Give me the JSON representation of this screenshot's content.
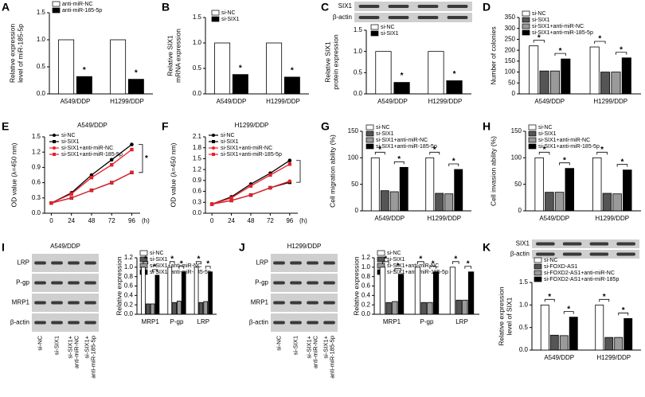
{
  "chart_data": [
    {
      "panel": "A",
      "type": "bar",
      "y_label": [
        "Relative expression",
        "level of miR-185-5p"
      ],
      "categories": [
        "A549/DDP",
        "H1299/DDP"
      ],
      "series": [
        {
          "name": "anti-miR-NC",
          "color": "#ffffff",
          "values": [
            1.0,
            1.0
          ]
        },
        {
          "name": "anti-miR-185-5p",
          "color": "#000000",
          "values": [
            0.32,
            0.27
          ]
        }
      ],
      "ylim": [
        0,
        1.5
      ],
      "yticks": [
        {
          "value": 0,
          "label": "0.0"
        },
        0.5,
        {
          "value": 1,
          "label": "1.0"
        },
        1.5
      ],
      "significance_marker": "*"
    },
    {
      "panel": "B",
      "type": "bar",
      "y_label": [
        "Relative SIX1",
        "mRNA expression"
      ],
      "categories": [
        "A549/DDP",
        "H1299/DDP"
      ],
      "series": [
        {
          "name": "si-NC",
          "color": "#ffffff",
          "values": [
            1.0,
            1.0
          ]
        },
        {
          "name": "si-SIX1",
          "color": "#000000",
          "values": [
            0.38,
            0.33
          ]
        }
      ],
      "ylim": [
        0,
        1.5
      ],
      "yticks": [
        {
          "value": 0,
          "label": "0.0"
        },
        0.5,
        {
          "value": 1,
          "label": "1.0"
        },
        1.5
      ],
      "significance_marker": "*"
    },
    {
      "panel": "C",
      "type": "bar",
      "blot": {
        "rows": [
          "SIX1",
          "β-actin"
        ]
      },
      "y_label": [
        "Relative SIX1",
        "protein expression"
      ],
      "categories": [
        "A549/DDP",
        "H1299/DDP"
      ],
      "series": [
        {
          "name": "si-NC",
          "color": "#ffffff",
          "values": [
            1.0,
            1.0
          ]
        },
        {
          "name": "si-SIX1",
          "color": "#000000",
          "values": [
            0.27,
            0.31
          ]
        }
      ],
      "ylim": [
        0,
        1.5
      ],
      "yticks": [
        {
          "value": 0,
          "label": "0.0"
        },
        0.5,
        {
          "value": 1,
          "label": "1.0"
        },
        1.5
      ],
      "significance_marker": "*"
    },
    {
      "panel": "D",
      "type": "bar",
      "y_label": [
        "Number of colonies"
      ],
      "categories": [
        "A549/DDP",
        "H1299/DDP"
      ],
      "series": [
        {
          "name": "si-NC",
          "color": "#ffffff",
          "values": [
            220,
            215
          ]
        },
        {
          "name": "si-SIX1",
          "color": "#555555",
          "values": [
            105,
            100
          ]
        },
        {
          "name": "si-SIX1+anti-miR-NC",
          "color": "#9a9a9a",
          "values": [
            105,
            100
          ]
        },
        {
          "name": "si-SIX1+anti-miR-185-5p",
          "color": "#000000",
          "values": [
            160,
            165
          ]
        }
      ],
      "ylim": [
        0,
        350
      ],
      "yticks": [
        0,
        50,
        100,
        150,
        200,
        250,
        300,
        350
      ],
      "significance_marker": "*"
    },
    {
      "panel": "E",
      "type": "line",
      "title": "A549/DDP",
      "y_label": [
        "OD value (λ=450 nm)"
      ],
      "x_label": "(h)",
      "x": [
        0,
        24,
        48,
        72,
        96
      ],
      "series": [
        {
          "name": "si-NC",
          "color": "#000000",
          "marker": "circle",
          "values": [
            0.2,
            0.4,
            0.75,
            1.05,
            1.35
          ]
        },
        {
          "name": "si-SIX1",
          "color": "#000000",
          "marker": "square",
          "values": [
            0.2,
            0.3,
            0.45,
            0.6,
            0.8
          ]
        },
        {
          "name": "si-SIX1+anti-miR-NC",
          "color": "#e8202a",
          "marker": "circle",
          "values": [
            0.2,
            0.3,
            0.45,
            0.6,
            0.8
          ]
        },
        {
          "name": "si-SIX1+anti-miR-185-5p",
          "color": "#e8202a",
          "marker": "square",
          "values": [
            0.2,
            0.38,
            0.7,
            0.95,
            1.25
          ]
        }
      ],
      "xlim": [
        -8,
        106
      ],
      "xticks": [
        0,
        24,
        48,
        72,
        96
      ],
      "ylim": [
        0,
        1.5
      ],
      "yticks": [
        {
          "value": 0,
          "label": "0.0"
        },
        0.3,
        0.6,
        0.9,
        1.2,
        1.5
      ],
      "significance_marker": "*"
    },
    {
      "panel": "F",
      "type": "line",
      "title": "H1299/DDP",
      "y_label": [
        "OD value (λ=450 nm)"
      ],
      "x_label": "(h)",
      "x": [
        0,
        24,
        48,
        72,
        96
      ],
      "series": [
        {
          "name": "si-NC",
          "color": "#000000",
          "marker": "circle",
          "values": [
            0.25,
            0.45,
            0.8,
            1.1,
            1.45
          ]
        },
        {
          "name": "si-SIX1",
          "color": "#000000",
          "marker": "square",
          "values": [
            0.25,
            0.35,
            0.5,
            0.7,
            0.85
          ]
        },
        {
          "name": "si-SIX1+anti-miR-NC",
          "color": "#e8202a",
          "marker": "circle",
          "values": [
            0.25,
            0.35,
            0.5,
            0.7,
            0.88
          ]
        },
        {
          "name": "si-SIX1+anti-miR-185-5p",
          "color": "#e8202a",
          "marker": "square",
          "values": [
            0.25,
            0.42,
            0.75,
            1.05,
            1.35
          ]
        }
      ],
      "xlim": [
        -8,
        106
      ],
      "xticks": [
        0,
        24,
        48,
        72,
        96
      ],
      "ylim": [
        0,
        2.1
      ],
      "yticks": [
        {
          "value": 0,
          "label": "0.0"
        },
        0.3,
        0.6,
        0.9,
        1.2,
        1.5,
        1.8,
        2.1
      ]
    },
    {
      "panel": "G",
      "type": "bar",
      "y_label": [
        "Cell migration ability (%)"
      ],
      "categories": [
        "A549/DDP",
        "H1299/DDP"
      ],
      "series": [
        {
          "name": "si-NC",
          "color": "#ffffff",
          "values": [
            100,
            100
          ]
        },
        {
          "name": "si-SIX1",
          "color": "#555555",
          "values": [
            38,
            33
          ]
        },
        {
          "name": "si-SIX1+anti-miR-NC",
          "color": "#9a9a9a",
          "values": [
            36,
            32
          ]
        },
        {
          "name": "si-SIX1+anti-miR-185-5p",
          "color": "#000000",
          "values": [
            82,
            78
          ]
        }
      ],
      "ylim": [
        0,
        150
      ],
      "yticks": [
        0,
        50,
        100,
        150
      ],
      "significance_marker": "*"
    },
    {
      "panel": "H",
      "type": "bar",
      "y_label": [
        "Cell invasion ability (%)"
      ],
      "categories": [
        "A549/DDP",
        "H1299/DDP"
      ],
      "series": [
        {
          "name": "si-NC",
          "color": "#ffffff",
          "values": [
            100,
            100
          ]
        },
        {
          "name": "si-SIX1",
          "color": "#555555",
          "values": [
            35,
            33
          ]
        },
        {
          "name": "si-SIX1+anti-miR-NC",
          "color": "#9a9a9a",
          "values": [
            35,
            32
          ]
        },
        {
          "name": "si-SIX1+anti-miR-185-5p",
          "color": "#000000",
          "values": [
            80,
            77
          ]
        }
      ],
      "ylim": [
        0,
        150
      ],
      "yticks": [
        0,
        50,
        100,
        150
      ],
      "significance_marker": "*"
    },
    {
      "panel": "I",
      "type": "bar",
      "blot": {
        "title": "A549/DDP",
        "rows": [
          "LRP",
          "P-gp",
          "MRP1",
          "β-actin"
        ],
        "lanes": [
          [
            "si-NC"
          ],
          [
            "si-SIX1"
          ],
          [
            "si-SIX1+",
            "anti-miR-NC"
          ],
          [
            "si-SIX1+",
            "anti-miR-185-5p"
          ]
        ]
      },
      "y_label": [
        "Relative expression"
      ],
      "categories": [
        "MRP1",
        "P-gp",
        "LRP"
      ],
      "series": [
        {
          "name": "si-NC",
          "color": "#ffffff",
          "values": [
            1.0,
            1.0,
            1.0
          ]
        },
        {
          "name": "si-SIX1",
          "color": "#555555",
          "values": [
            0.22,
            0.25,
            0.25
          ]
        },
        {
          "name": "si-SIX1+anti-miR-NC",
          "color": "#9a9a9a",
          "values": [
            0.22,
            0.28,
            0.27
          ]
        },
        {
          "name": "si-SIX1+anti-miR-185-5p",
          "color": "#000000",
          "values": [
            0.83,
            0.9,
            0.9
          ]
        }
      ],
      "ylim": [
        0,
        1.2
      ],
      "yticks": [
        {
          "value": 0,
          "label": "0.0"
        },
        0.2,
        0.4,
        0.6,
        0.8,
        {
          "value": 1,
          "label": "1.0"
        },
        1.2
      ],
      "significance_marker": "*"
    },
    {
      "panel": "J",
      "type": "bar",
      "blot": {
        "title": "H1299/DDP",
        "rows": [
          "LRP",
          "P-gp",
          "MRP1",
          "β-actin"
        ],
        "lanes": [
          [
            "si-NC"
          ],
          [
            "si-SIX1"
          ],
          [
            "si-SIX1+",
            "anti-miR-NC"
          ],
          [
            "si-SIX1+",
            "anti-miR-185-5p"
          ]
        ]
      },
      "y_label": [
        "Relative expression"
      ],
      "categories": [
        "MRP1",
        "P-gp",
        "LRP"
      ],
      "series": [
        {
          "name": "si-NC",
          "color": "#ffffff",
          "values": [
            1.0,
            1.0,
            1.0
          ]
        },
        {
          "name": "si-SIX1",
          "color": "#555555",
          "values": [
            0.25,
            0.25,
            0.3
          ]
        },
        {
          "name": "si-SIX1+anti-miR-NC",
          "color": "#9a9a9a",
          "values": [
            0.27,
            0.25,
            0.3
          ]
        },
        {
          "name": "si-SIX1+anti-miR-185-5p",
          "color": "#000000",
          "values": [
            0.85,
            0.9,
            0.9
          ]
        }
      ],
      "ylim": [
        0,
        1.2
      ],
      "yticks": [
        {
          "value": 0,
          "label": "0.0"
        },
        0.2,
        0.4,
        0.6,
        0.8,
        {
          "value": 1,
          "label": "1.0"
        },
        1.2
      ],
      "significance_marker": "*"
    },
    {
      "panel": "K",
      "type": "bar",
      "blot": {
        "rows": [
          "SIX1",
          "β-actin"
        ]
      },
      "y_label": [
        "Relative expression",
        "level of SIX1"
      ],
      "categories": [
        "A549/DDP",
        "H1299/DDP"
      ],
      "series": [
        {
          "name": "si-NC",
          "color": "#ffffff",
          "values": [
            1.0,
            1.0
          ]
        },
        {
          "name": "si-FOXD-AS1",
          "color": "#555555",
          "values": [
            0.33,
            0.28
          ]
        },
        {
          "name": "si-FOXD2-AS1+anti-miR-NC",
          "color": "#9a9a9a",
          "values": [
            0.32,
            0.28
          ]
        },
        {
          "name": "si-FOXD2-AS1+anti-miR-185p",
          "color": "#000000",
          "values": [
            0.73,
            0.7
          ]
        }
      ],
      "ylim": [
        0,
        1.5
      ],
      "yticks": [
        {
          "value": 0,
          "label": "0.0"
        },
        0.5,
        {
          "value": 1,
          "label": "1.0"
        },
        1.5
      ],
      "significance_marker": "*"
    }
  ]
}
